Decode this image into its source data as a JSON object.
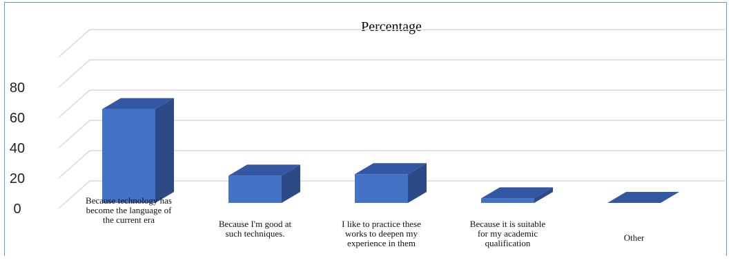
{
  "chart_data": {
    "type": "bar",
    "title": "Percentage",
    "xlabel": "",
    "ylabel": "",
    "categories": [
      "Because technology has become the language of the current era",
      "Because I'm good at such techniques.",
      "I like to practice these works to deepen my experience in them",
      "Because it is suitable for my academic qualification",
      "Other"
    ],
    "category_lines": [
      [
        "Because technology has",
        "become the language of",
        "the current era"
      ],
      [
        "Because I'm good at",
        "such techniques."
      ],
      [
        "I like to practice these",
        "works to deepen my",
        "experience in them"
      ],
      [
        "Because it is suitable",
        "for my academic",
        "qualification"
      ],
      [
        "Other"
      ]
    ],
    "values": [
      62,
      18,
      19,
      3,
      0
    ],
    "yticks": [
      "0",
      "20",
      "40",
      "60",
      "80"
    ],
    "ylim": [
      0,
      80
    ],
    "grid": true,
    "legend": "none",
    "style_3d": true,
    "colors": {
      "bar_front": "#4472c4",
      "bar_side": "#2b4a86",
      "bar_top": "#3457a3",
      "grid": "#d9d9d9",
      "frame": "#5b9bd5"
    }
  }
}
